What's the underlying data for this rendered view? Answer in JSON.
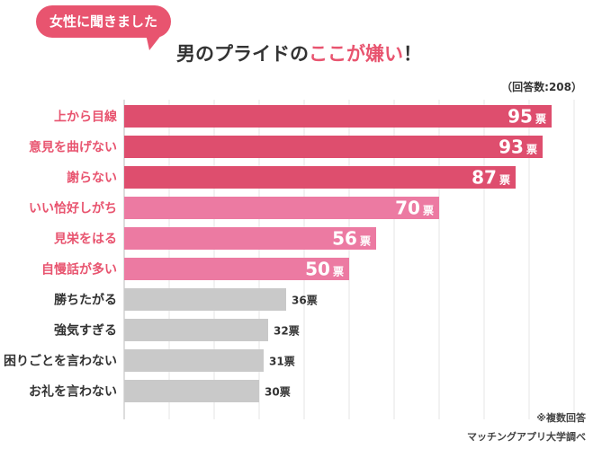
{
  "header": {
    "bubble_text": "女性に聞きました",
    "title_prefix": "男のプライドの",
    "title_highlight": "ここが嫌い",
    "title_suffix": "！",
    "respondents": "（回答数:208）"
  },
  "footer": {
    "note": "※複数回答",
    "source": "マッチングアプリ大学調べ"
  },
  "colors": {
    "accent": "#e8546f",
    "bar_dark_pink": "#de4e6e",
    "bar_light_pink": "#ec7aa2",
    "bar_gray": "#c9c9c9",
    "label_pink": "#e8546f",
    "label_dark": "#333333"
  },
  "chart_data": {
    "type": "bar",
    "orientation": "horizontal",
    "unit": "票",
    "xlim": [
      0,
      100
    ],
    "grid": true,
    "categories": [
      "上から目線",
      "意見を曲げない",
      "謝らない",
      "いい恰好しがち",
      "見栄をはる",
      "自慢話が多い",
      "勝ちたがる",
      "強気すぎる",
      "困りごとを言わない",
      "お礼を言わない"
    ],
    "values": [
      95,
      93,
      87,
      70,
      56,
      50,
      36,
      32,
      31,
      30
    ],
    "tiers": [
      "dark",
      "dark",
      "dark",
      "light",
      "light",
      "light",
      "gray",
      "gray",
      "gray",
      "gray"
    ]
  }
}
